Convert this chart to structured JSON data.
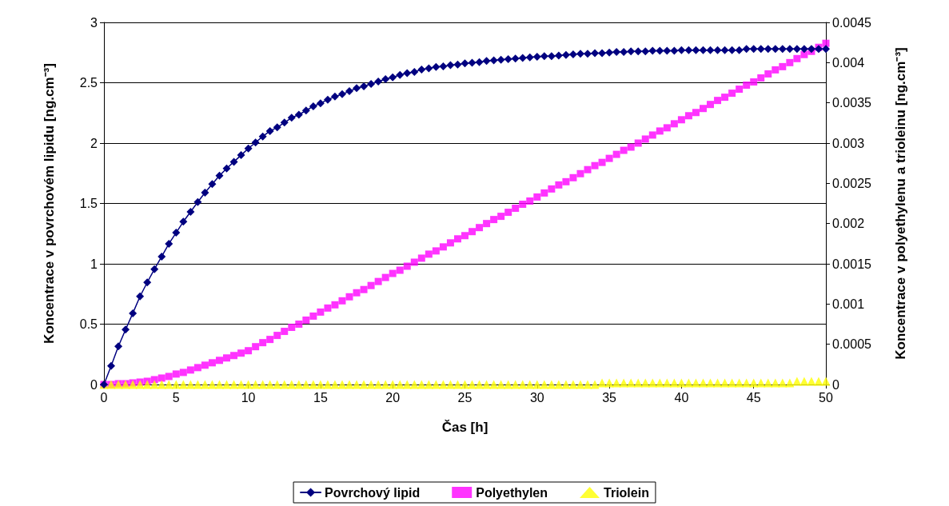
{
  "chart_data": {
    "type": "line",
    "xlabel": "Čas [h]",
    "ylabel": "Koncentrace v povrchovém lipidu [ng.cm⁻³]",
    "y2label": "Koncentrace v polyethylenu a trioleinu [ng.cm⁻³]",
    "x": [
      0,
      0.5,
      1,
      1.5,
      2,
      2.5,
      3,
      3.5,
      4,
      4.5,
      5,
      5.5,
      6,
      6.5,
      7,
      7.5,
      8,
      8.5,
      9,
      9.5,
      10,
      10.5,
      11,
      11.5,
      12,
      12.5,
      13,
      13.5,
      14,
      14.5,
      15,
      15.5,
      16,
      16.5,
      17,
      17.5,
      18,
      18.5,
      19,
      19.5,
      20,
      20.5,
      21,
      21.5,
      22,
      22.5,
      23,
      23.5,
      24,
      24.5,
      25,
      25.5,
      26,
      26.5,
      27,
      27.5,
      28,
      28.5,
      29,
      29.5,
      30,
      30.5,
      31,
      31.5,
      32,
      32.5,
      33,
      33.5,
      34,
      34.5,
      35,
      35.5,
      36,
      36.5,
      37,
      37.5,
      38,
      38.5,
      39,
      39.5,
      40,
      40.5,
      41,
      41.5,
      42,
      42.5,
      43,
      43.5,
      44,
      44.5,
      45,
      45.5,
      46,
      46.5,
      47,
      47.5,
      48,
      48.5,
      49,
      49.5,
      50
    ],
    "series": [
      {
        "name": "Povrchový lipid",
        "marker": "diamond",
        "color": "#000080",
        "values": [
          0,
          0.154,
          0.316,
          0.455,
          0.59,
          0.73,
          0.846,
          0.956,
          1.06,
          1.166,
          1.258,
          1.349,
          1.43,
          1.512,
          1.59,
          1.66,
          1.73,
          1.79,
          1.845,
          1.9,
          1.955,
          2.005,
          2.055,
          2.1,
          2.13,
          2.17,
          2.21,
          2.235,
          2.27,
          2.305,
          2.33,
          2.36,
          2.385,
          2.405,
          2.43,
          2.455,
          2.47,
          2.49,
          2.51,
          2.53,
          2.545,
          2.565,
          2.58,
          2.59,
          2.61,
          2.62,
          2.63,
          2.635,
          2.645,
          2.65,
          2.66,
          2.665,
          2.67,
          2.68,
          2.685,
          2.69,
          2.695,
          2.7,
          2.705,
          2.71,
          2.715,
          2.72,
          2.72,
          2.725,
          2.73,
          2.735,
          2.74,
          2.74,
          2.745,
          2.745,
          2.75,
          2.755,
          2.755,
          2.76,
          2.76,
          2.76,
          2.765,
          2.765,
          2.765,
          2.765,
          2.77,
          2.77,
          2.77,
          2.77,
          2.77,
          2.77,
          2.77,
          2.77,
          2.77,
          2.78,
          2.78,
          2.78,
          2.78,
          2.78,
          2.78,
          2.78,
          2.78,
          2.78,
          2.78,
          2.78,
          2.78
        ]
      },
      {
        "name": "Polyethylen",
        "type": "scatter",
        "marker": "square",
        "axis": "y2",
        "color": "#ff00ff",
        "values": [
          0,
          0,
          1e-05,
          1e-05,
          2e-05,
          3e-05,
          4e-05,
          6e-05,
          8e-05,
          0.0001,
          0.00013,
          0.00015,
          0.00018,
          0.00021,
          0.00024,
          0.00027,
          0.0003,
          0.00033,
          0.00036,
          0.00039,
          0.00042,
          0.00047,
          0.00052,
          0.00056,
          0.00061,
          0.00066,
          0.00071,
          0.00075,
          0.0008,
          0.00085,
          0.0009,
          0.00095,
          0.00099,
          0.00104,
          0.00109,
          0.00114,
          0.00118,
          0.00123,
          0.00128,
          0.00133,
          0.00138,
          0.00142,
          0.00147,
          0.00152,
          0.00157,
          0.00162,
          0.00166,
          0.00171,
          0.00176,
          0.00181,
          0.00185,
          0.0019,
          0.00195,
          0.002,
          0.00205,
          0.00209,
          0.00214,
          0.00219,
          0.00224,
          0.00228,
          0.00233,
          0.00238,
          0.00243,
          0.00248,
          0.00252,
          0.00257,
          0.00262,
          0.00267,
          0.00272,
          0.00276,
          0.00281,
          0.00286,
          0.00291,
          0.00295,
          0.003,
          0.00305,
          0.0031,
          0.00315,
          0.00319,
          0.00324,
          0.00329,
          0.00334,
          0.00338,
          0.00343,
          0.00348,
          0.00353,
          0.00357,
          0.00362,
          0.00367,
          0.00372,
          0.00376,
          0.00381,
          0.00386,
          0.00391,
          0.00395,
          0.004,
          0.00405,
          0.0041,
          0.00414,
          0.00419,
          0.00424
        ]
      },
      {
        "name": "Triolein",
        "type": "scatter",
        "marker": "triangle",
        "axis": "y2",
        "color": "#ffff00",
        "values": [
          0,
          0,
          0,
          0,
          0,
          0,
          0,
          0,
          0,
          0,
          0,
          0,
          0,
          0,
          0,
          0,
          0,
          0,
          0,
          0,
          0,
          0,
          0,
          0,
          0,
          0,
          0,
          0,
          0,
          0,
          0,
          0,
          0,
          0,
          0,
          0,
          0,
          0,
          0,
          0,
          0,
          0,
          0,
          0,
          0,
          0,
          0,
          0,
          0,
          0,
          0,
          0,
          0,
          0,
          0,
          0,
          0,
          0,
          0,
          0,
          0,
          0,
          0,
          0,
          0,
          0,
          0,
          0,
          0,
          2e-05,
          2e-05,
          2e-05,
          2e-05,
          2e-05,
          2e-05,
          2e-05,
          2e-05,
          2e-05,
          2e-05,
          2e-05,
          2e-05,
          2e-05,
          2e-05,
          2e-05,
          2e-05,
          2e-05,
          2e-05,
          2e-05,
          2e-05,
          2e-05,
          2e-05,
          2e-05,
          2e-05,
          2e-05,
          2e-05,
          2e-05,
          4e-05,
          4e-05,
          4e-05,
          4e-05,
          4e-05
        ]
      }
    ],
    "xlim": [
      0,
      50
    ],
    "xticks": [
      0,
      5,
      10,
      15,
      20,
      25,
      30,
      35,
      40,
      45,
      50
    ],
    "ylim": [
      0,
      3
    ],
    "yticks": [
      0,
      0.5,
      1,
      1.5,
      2,
      2.5,
      3
    ],
    "y2lim": [
      0,
      0.0045
    ],
    "y2ticks": [
      0,
      0.0005,
      0.001,
      0.0015,
      0.002,
      0.0025,
      0.003,
      0.0035,
      0.004,
      0.0045
    ],
    "grid": "y",
    "legend": "bottom"
  }
}
